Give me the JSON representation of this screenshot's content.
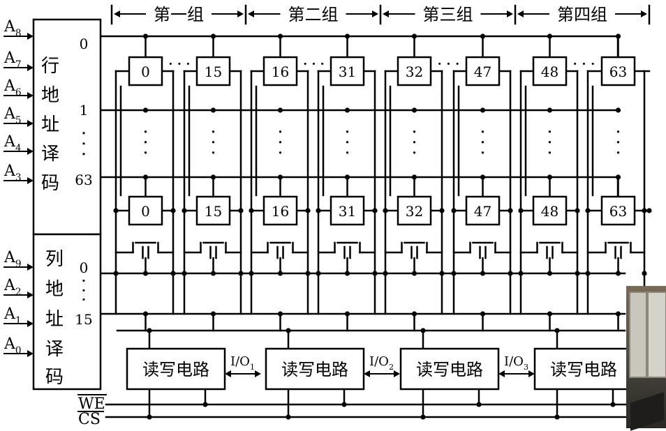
{
  "groups": [
    "第一组",
    "第二组",
    "第三组",
    "第四组"
  ],
  "row_decoder": {
    "title_chars": [
      "行",
      "地",
      "址",
      "译",
      "码"
    ],
    "inputs": [
      {
        "base": "A",
        "sub": "8"
      },
      {
        "base": "A",
        "sub": "7"
      },
      {
        "base": "A",
        "sub": "6"
      },
      {
        "base": "A",
        "sub": "5"
      },
      {
        "base": "A",
        "sub": "4"
      },
      {
        "base": "A",
        "sub": "3"
      }
    ],
    "outputs": [
      "0",
      "1",
      "63"
    ]
  },
  "col_decoder": {
    "title_chars": [
      "列",
      "地",
      "址",
      "译",
      "码"
    ],
    "inputs": [
      {
        "base": "A",
        "sub": "9"
      },
      {
        "base": "A",
        "sub": "2"
      },
      {
        "base": "A",
        "sub": "1"
      },
      {
        "base": "A",
        "sub": "0"
      }
    ],
    "outputs": [
      "0",
      "15"
    ]
  },
  "cells": {
    "top_row": [
      "0",
      "15",
      "16",
      "31",
      "32",
      "47",
      "48",
      "63"
    ],
    "bottom_row": [
      "0",
      "15",
      "16",
      "31",
      "32",
      "47",
      "48",
      "63"
    ]
  },
  "rw_circuit_label": "读写电路",
  "io_ports": [
    {
      "base": "I/O",
      "sub": "1"
    },
    {
      "base": "I/O",
      "sub": "2"
    },
    {
      "base": "I/O",
      "sub": "3"
    }
  ],
  "control": {
    "we": "WE",
    "cs": "CS"
  }
}
